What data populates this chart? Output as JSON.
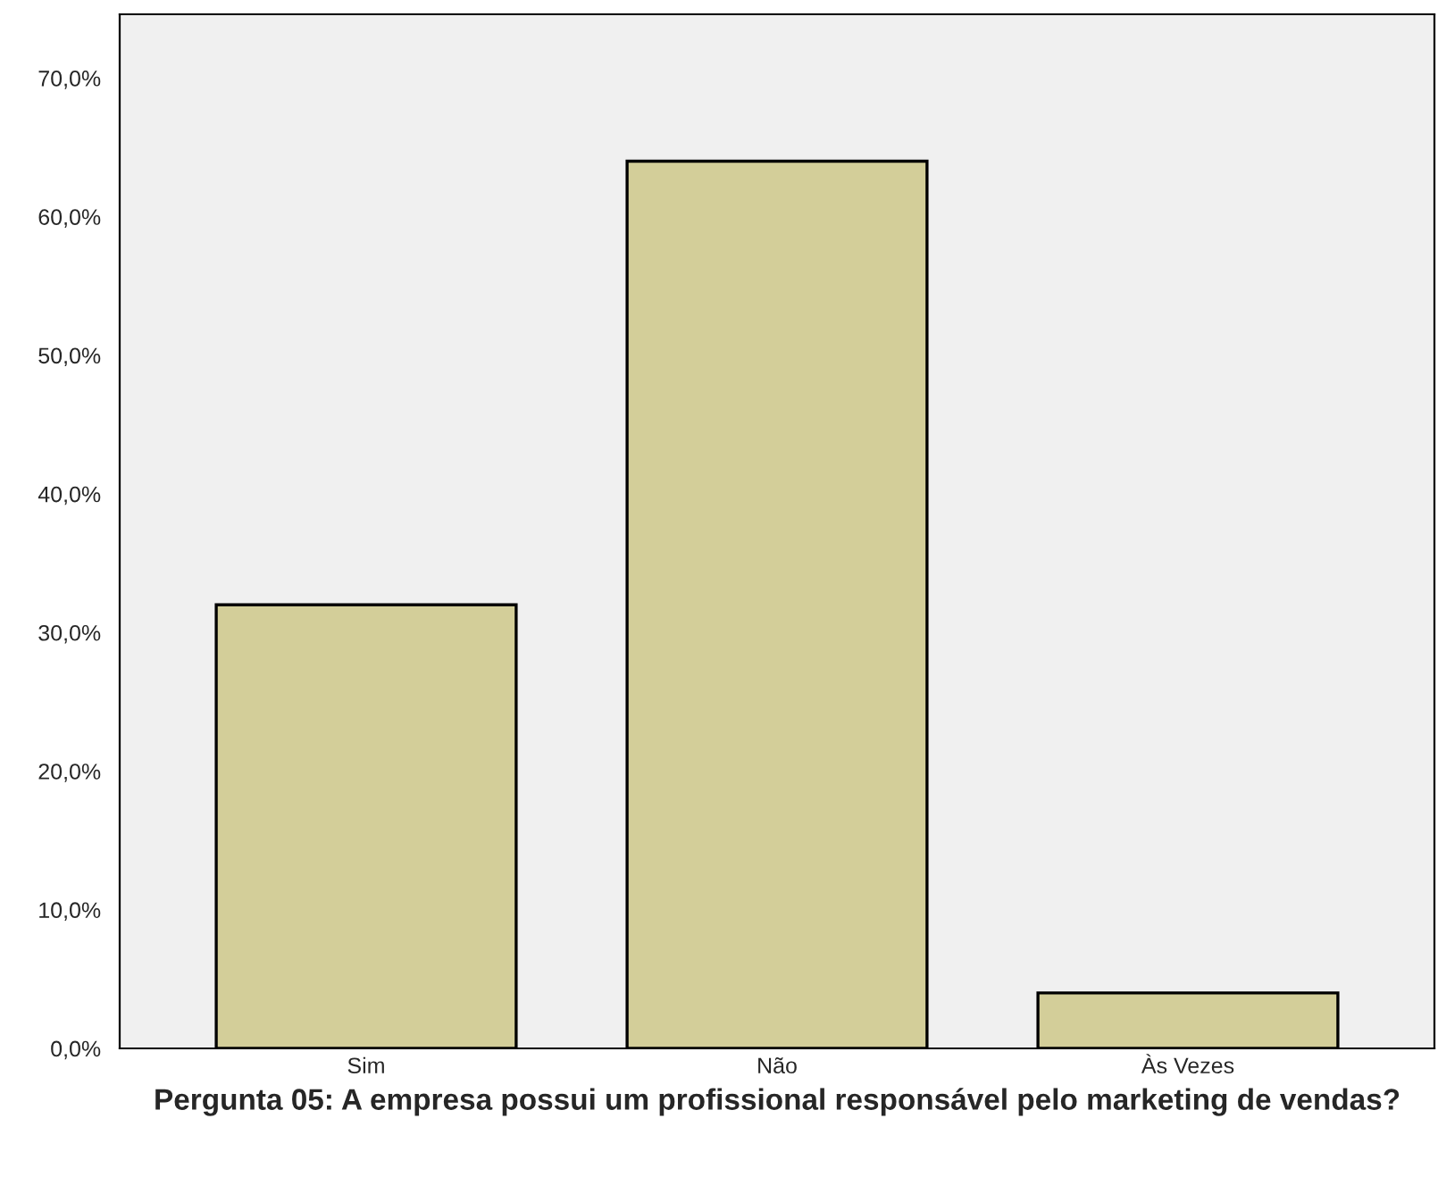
{
  "chart_data": {
    "type": "bar",
    "xlabel": "Pergunta 05: A empresa possui um profissional responsável pelo marketing de vendas?",
    "categories": [
      "Sim",
      "Não",
      "Às Vezes"
    ],
    "values": [
      32,
      64,
      4
    ],
    "color": "#d3ce99",
    "ylim": [
      0,
      74.6
    ],
    "yticks": [
      {
        "value": 0,
        "label": "0,0%"
      },
      {
        "value": 10,
        "label": "10,0%"
      },
      {
        "value": 20,
        "label": "20,0%"
      },
      {
        "value": 30,
        "label": "30,0%"
      },
      {
        "value": 40,
        "label": "40,0%"
      },
      {
        "value": 50,
        "label": "50,0%"
      },
      {
        "value": 60,
        "label": "60,0%"
      },
      {
        "value": 70,
        "label": "70,0%"
      }
    ],
    "grid": false
  }
}
